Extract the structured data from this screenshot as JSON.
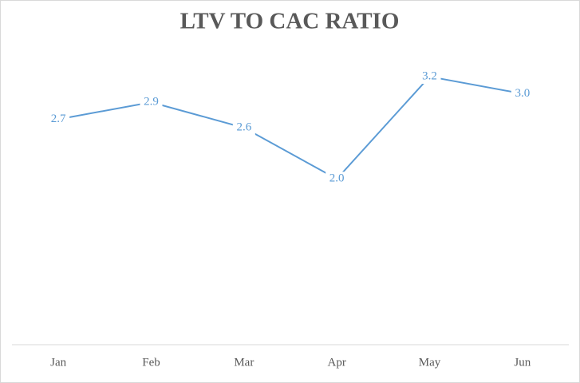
{
  "chart_data": {
    "type": "line",
    "title": "LTV TO CAC RATIO",
    "categories": [
      "Jan",
      "Feb",
      "Mar",
      "Apr",
      "May",
      "Jun"
    ],
    "values": [
      2.7,
      2.9,
      2.6,
      2.0,
      3.2,
      3.0
    ],
    "value_labels": [
      "2.7",
      "2.9",
      "2.6",
      "2.0",
      "3.2",
      "3.0"
    ],
    "color": "#5b9bd5",
    "ylim": [
      0,
      3.5
    ]
  }
}
